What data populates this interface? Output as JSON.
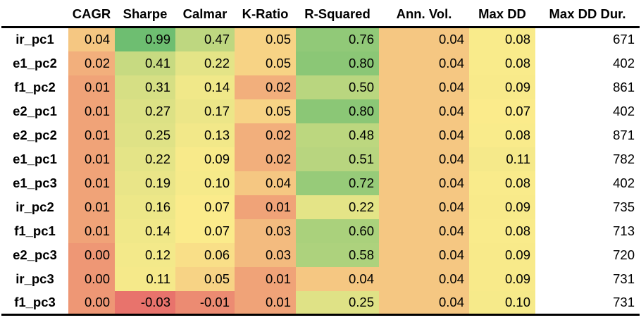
{
  "chart_data": {
    "type": "heatmap",
    "columns": [
      "CAGR",
      "Sharpe",
      "Calmar",
      "K-Ratio",
      "R-Squared",
      "Ann. Vol.",
      "Max DD",
      "Max DD Dur."
    ],
    "rows": [
      {
        "label": "ir_pc1",
        "values": [
          0.04,
          0.99,
          0.47,
          0.05,
          0.76,
          0.04,
          0.08,
          671
        ],
        "display": [
          "0.04",
          "0.99",
          "0.47",
          "0.05",
          "0.76",
          "0.04",
          "0.08",
          "671"
        ]
      },
      {
        "label": "e1_pc2",
        "values": [
          0.02,
          0.41,
          0.22,
          0.05,
          0.8,
          0.04,
          0.08,
          402
        ],
        "display": [
          "0.02",
          "0.41",
          "0.22",
          "0.05",
          "0.80",
          "0.04",
          "0.08",
          "402"
        ]
      },
      {
        "label": "f1_pc2",
        "values": [
          0.01,
          0.31,
          0.14,
          0.02,
          0.5,
          0.04,
          0.09,
          861
        ],
        "display": [
          "0.01",
          "0.31",
          "0.14",
          "0.02",
          "0.50",
          "0.04",
          "0.09",
          "861"
        ]
      },
      {
        "label": "e2_pc1",
        "values": [
          0.01,
          0.27,
          0.17,
          0.05,
          0.8,
          0.04,
          0.07,
          402
        ],
        "display": [
          "0.01",
          "0.27",
          "0.17",
          "0.05",
          "0.80",
          "0.04",
          "0.07",
          "402"
        ]
      },
      {
        "label": "e2_pc2",
        "values": [
          0.01,
          0.25,
          0.13,
          0.02,
          0.48,
          0.04,
          0.08,
          871
        ],
        "display": [
          "0.01",
          "0.25",
          "0.13",
          "0.02",
          "0.48",
          "0.04",
          "0.08",
          "871"
        ]
      },
      {
        "label": "e1_pc1",
        "values": [
          0.01,
          0.22,
          0.09,
          0.02,
          0.51,
          0.04,
          0.11,
          782
        ],
        "display": [
          "0.01",
          "0.22",
          "0.09",
          "0.02",
          "0.51",
          "0.04",
          "0.11",
          "782"
        ]
      },
      {
        "label": "e1_pc3",
        "values": [
          0.01,
          0.19,
          0.1,
          0.04,
          0.72,
          0.04,
          0.08,
          402
        ],
        "display": [
          "0.01",
          "0.19",
          "0.10",
          "0.04",
          "0.72",
          "0.04",
          "0.08",
          "402"
        ]
      },
      {
        "label": "ir_pc2",
        "values": [
          0.01,
          0.16,
          0.07,
          0.01,
          0.22,
          0.04,
          0.09,
          735
        ],
        "display": [
          "0.01",
          "0.16",
          "0.07",
          "0.01",
          "0.22",
          "0.04",
          "0.09",
          "735"
        ]
      },
      {
        "label": "f1_pc1",
        "values": [
          0.01,
          0.14,
          0.07,
          0.03,
          0.6,
          0.04,
          0.08,
          713
        ],
        "display": [
          "0.01",
          "0.14",
          "0.07",
          "0.03",
          "0.60",
          "0.04",
          "0.08",
          "713"
        ]
      },
      {
        "label": "e2_pc3",
        "values": [
          0.0,
          0.12,
          0.06,
          0.03,
          0.58,
          0.04,
          0.09,
          720
        ],
        "display": [
          "0.00",
          "0.12",
          "0.06",
          "0.03",
          "0.58",
          "0.04",
          "0.09",
          "720"
        ]
      },
      {
        "label": "ir_pc3",
        "values": [
          0.0,
          0.11,
          0.05,
          0.01,
          0.04,
          0.04,
          0.09,
          731
        ],
        "display": [
          "0.00",
          "0.11",
          "0.05",
          "0.01",
          "0.04",
          "0.04",
          "0.09",
          "731"
        ]
      },
      {
        "label": "f1_pc3",
        "values": [
          0.0,
          -0.03,
          -0.01,
          0.01,
          0.25,
          0.04,
          0.1,
          731
        ],
        "display": [
          "0.00",
          "-0.03",
          "-0.01",
          "0.01",
          "0.25",
          "0.04",
          "0.10",
          "731"
        ]
      }
    ],
    "color_scale": {
      "low": "#e8736c",
      "mid": "#fbeb8b",
      "high": "#6ebe71"
    },
    "uncolored_columns": [
      "Max DD Dur."
    ],
    "uncolored_background": "#ffffff",
    "grid": false,
    "legend": "none"
  }
}
